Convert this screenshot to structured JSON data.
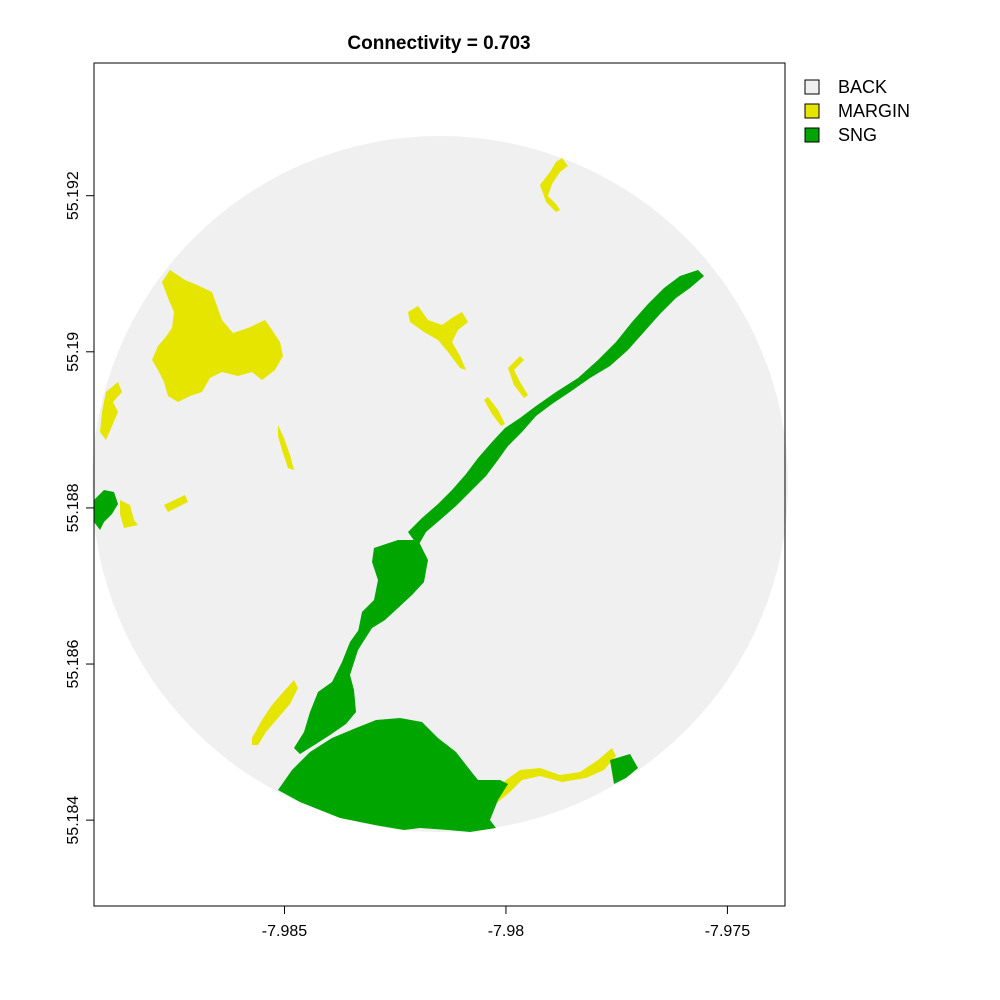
{
  "chart_data": {
    "type": "map",
    "title": "Connectivity = 0.703",
    "x_axis": {
      "range": [
        -7.9893,
        -7.9737
      ],
      "ticks": [
        -7.985,
        -7.98,
        -7.975
      ],
      "tick_labels": [
        "-7.985",
        "-7.98",
        "-7.975"
      ]
    },
    "y_axis": {
      "range": [
        55.1829,
        55.1937
      ],
      "ticks": [
        55.184,
        55.186,
        55.188,
        55.19,
        55.192
      ],
      "tick_labels": [
        "55.184",
        "55.186",
        "55.188",
        "55.19",
        "55.192"
      ]
    },
    "legend": [
      {
        "label": "BACK",
        "color": "#f0f0f0"
      },
      {
        "label": "MARGIN",
        "color": "#e5e500"
      },
      {
        "label": "SNG",
        "color": "#00a500"
      }
    ],
    "study_area": {
      "shape": "circle",
      "center": [
        -7.9815,
        55.1874
      ]
    },
    "connectivity": 0.703
  },
  "colors": {
    "back": "#f0f0f0",
    "margin": "#e5e500",
    "sng": "#00a500",
    "axis": "#000000"
  }
}
